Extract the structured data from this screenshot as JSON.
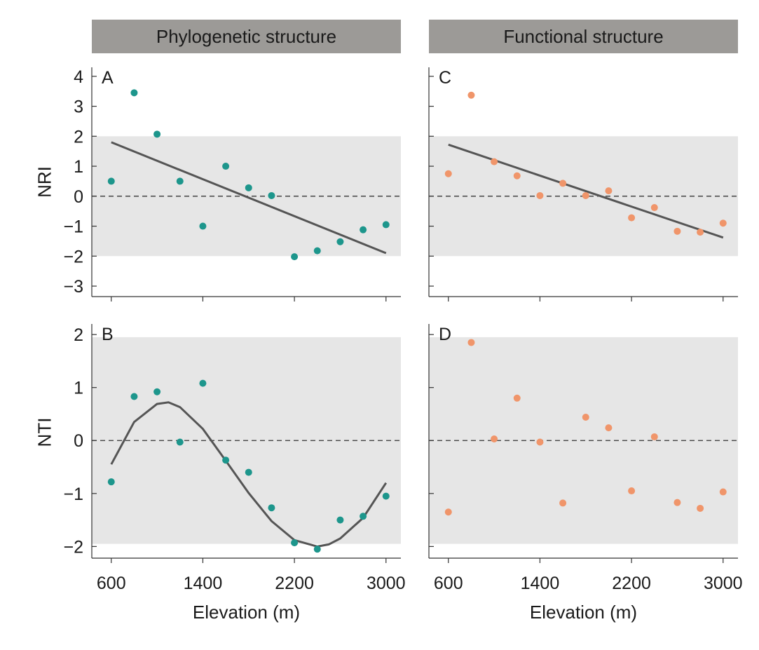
{
  "column_headers": [
    "Phylogenetic structure",
    "Functional structure"
  ],
  "xlabel": "Elevation (m)",
  "ylabels": [
    "NRI",
    "NTI"
  ],
  "colors": {
    "phylogenetic": "#1d968c",
    "functional": "#f0956a",
    "band": "#e6e6e6",
    "fit": "#555555",
    "header_bg": "#9c9a97"
  },
  "chart_data": [
    {
      "panel": "A",
      "type": "scatter",
      "ylabel": "NRI",
      "xlim": [
        430,
        3130
      ],
      "ylim": [
        -3.35,
        4.3
      ],
      "xticks": [
        600,
        1400,
        2200,
        3000
      ],
      "yticks": [
        -3,
        -2,
        -1,
        0,
        1,
        2,
        3,
        4
      ],
      "shaded_band": [
        -2,
        2
      ],
      "reference_line": 0,
      "points": [
        [
          600,
          0.5
        ],
        [
          800,
          3.45
        ],
        [
          1000,
          2.07
        ],
        [
          1200,
          0.5
        ],
        [
          1400,
          -1.0
        ],
        [
          1600,
          1.0
        ],
        [
          1800,
          0.28
        ],
        [
          2000,
          0.02
        ],
        [
          2200,
          -2.02
        ],
        [
          2400,
          -1.82
        ],
        [
          2600,
          -1.52
        ],
        [
          2800,
          -1.12
        ],
        [
          3000,
          -0.95
        ]
      ],
      "fit": {
        "type": "linear",
        "x": [
          600,
          3000
        ],
        "y": [
          1.8,
          -1.9
        ]
      }
    },
    {
      "panel": "C",
      "type": "scatter",
      "ylabel": "NRI",
      "xlim": [
        430,
        3130
      ],
      "ylim": [
        -3.35,
        4.3
      ],
      "xticks": [
        600,
        1400,
        2200,
        3000
      ],
      "yticks": [
        -3,
        -2,
        -1,
        0,
        1,
        2,
        3,
        4
      ],
      "shaded_band": [
        -2,
        2
      ],
      "reference_line": 0,
      "points": [
        [
          600,
          0.75
        ],
        [
          800,
          3.37
        ],
        [
          1000,
          1.15
        ],
        [
          1200,
          0.68
        ],
        [
          1400,
          0.02
        ],
        [
          1600,
          0.43
        ],
        [
          1800,
          0.02
        ],
        [
          2000,
          0.18
        ],
        [
          2200,
          -0.72
        ],
        [
          2400,
          -0.38
        ],
        [
          2600,
          -1.17
        ],
        [
          2800,
          -1.2
        ],
        [
          3000,
          -0.9
        ]
      ],
      "fit": {
        "type": "linear",
        "x": [
          600,
          3000
        ],
        "y": [
          1.72,
          -1.38
        ]
      }
    },
    {
      "panel": "B",
      "type": "scatter",
      "ylabel": "NTI",
      "xlim": [
        430,
        3130
      ],
      "ylim": [
        -2.22,
        2.2
      ],
      "xticks": [
        600,
        1400,
        2200,
        3000
      ],
      "yticks": [
        -2,
        -1,
        0,
        1,
        2
      ],
      "shaded_band": [
        -1.95,
        1.95
      ],
      "reference_line": 0,
      "points": [
        [
          600,
          -0.78
        ],
        [
          800,
          0.83
        ],
        [
          1000,
          0.92
        ],
        [
          1200,
          -0.03
        ],
        [
          1400,
          1.08
        ],
        [
          1600,
          -0.37
        ],
        [
          1800,
          -0.6
        ],
        [
          2000,
          -1.27
        ],
        [
          2200,
          -1.93
        ],
        [
          2400,
          -2.05
        ],
        [
          2600,
          -1.5
        ],
        [
          2800,
          -1.43
        ],
        [
          3000,
          -1.05
        ]
      ],
      "fit": {
        "type": "cubic",
        "x": [
          600,
          800,
          1000,
          1100,
          1200,
          1400,
          1600,
          1800,
          2000,
          2200,
          2400,
          2500,
          2600,
          2800,
          3000
        ],
        "y": [
          -0.45,
          0.35,
          0.69,
          0.72,
          0.63,
          0.22,
          -0.38,
          -0.99,
          -1.52,
          -1.88,
          -2.0,
          -1.96,
          -1.85,
          -1.46,
          -0.8
        ]
      }
    },
    {
      "panel": "D",
      "type": "scatter",
      "ylabel": "NTI",
      "xlim": [
        430,
        3130
      ],
      "ylim": [
        -2.22,
        2.2
      ],
      "xticks": [
        600,
        1400,
        2200,
        3000
      ],
      "yticks": [
        -2,
        -1,
        0,
        1,
        2
      ],
      "shaded_band": [
        -1.95,
        1.95
      ],
      "reference_line": 0,
      "points": [
        [
          600,
          -1.35
        ],
        [
          800,
          1.85
        ],
        [
          1000,
          0.03
        ],
        [
          1200,
          0.8
        ],
        [
          1400,
          -0.03
        ],
        [
          1600,
          -1.18
        ],
        [
          1800,
          0.44
        ],
        [
          2000,
          0.24
        ],
        [
          2200,
          -0.95
        ],
        [
          2400,
          0.07
        ],
        [
          2600,
          -1.17
        ],
        [
          2800,
          -1.28
        ],
        [
          3000,
          -0.97
        ]
      ],
      "fit": null
    }
  ]
}
